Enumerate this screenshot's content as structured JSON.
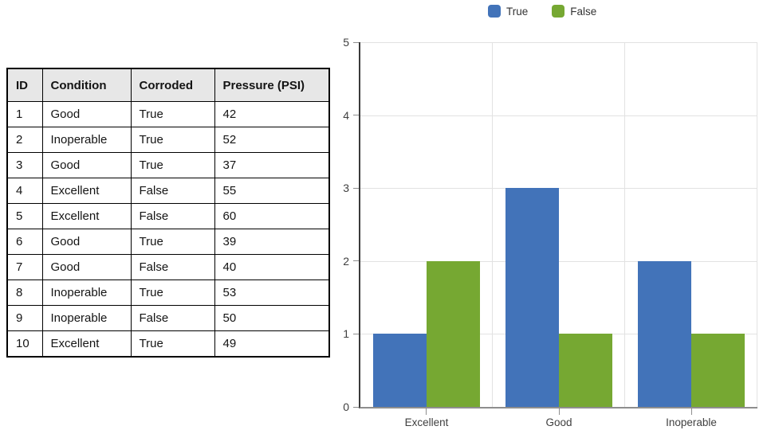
{
  "table": {
    "columns": [
      "ID",
      "Condition",
      "Corroded",
      "Pressure (PSI)"
    ],
    "rows": [
      [
        "1",
        "Good",
        "True",
        "42"
      ],
      [
        "2",
        "Inoperable",
        "True",
        "52"
      ],
      [
        "3",
        "Good",
        "True",
        "37"
      ],
      [
        "4",
        "Excellent",
        "False",
        "55"
      ],
      [
        "5",
        "Excellent",
        "False",
        "60"
      ],
      [
        "6",
        "Good",
        "True",
        "39"
      ],
      [
        "7",
        "Good",
        "False",
        "40"
      ],
      [
        "8",
        "Inoperable",
        "True",
        "53"
      ],
      [
        "9",
        "Inoperable",
        "False",
        "50"
      ],
      [
        "10",
        "Excellent",
        "True",
        "49"
      ]
    ]
  },
  "chart_data": {
    "type": "bar",
    "title": "",
    "xlabel": "",
    "ylabel": "",
    "categories": [
      "Excellent",
      "Good",
      "Inoperable"
    ],
    "series": [
      {
        "name": "True",
        "color": "#4273B9",
        "values": [
          1,
          3,
          2
        ]
      },
      {
        "name": "False",
        "color": "#76A832",
        "values": [
          2,
          1,
          1
        ]
      }
    ],
    "ylim": [
      0,
      5
    ],
    "yticks": [
      0,
      1,
      2,
      3,
      4,
      5
    ],
    "grid": true,
    "legend_position": "top"
  },
  "colors": {
    "series_true": "#4273B9",
    "series_false": "#76A832",
    "gridline": "#E2E2E2",
    "y_axis": "#3B3B3B",
    "x_axis": "#8E8E8E",
    "table_header_bg": "#E7E7E7",
    "table_border": "#000000",
    "label_text": "#3F3F3F"
  }
}
